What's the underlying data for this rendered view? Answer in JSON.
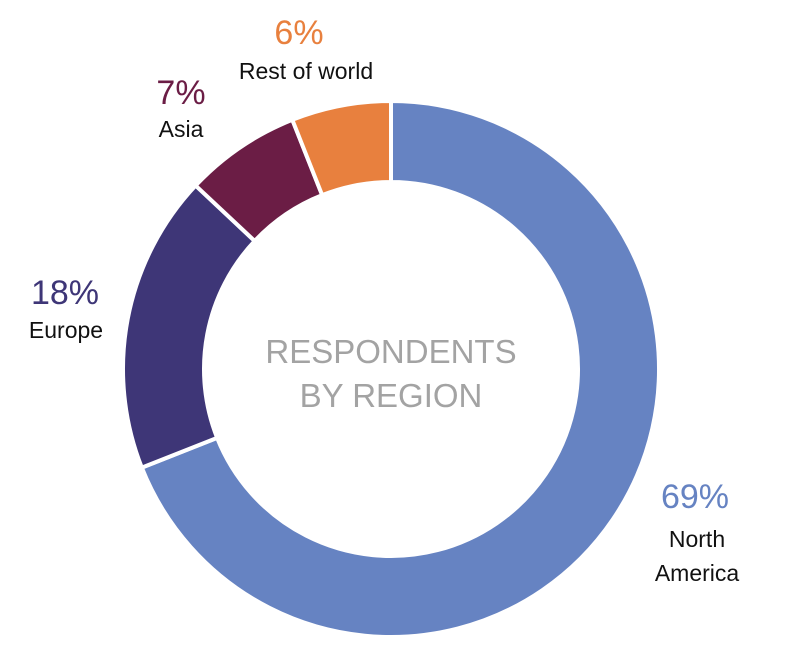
{
  "chart_data": {
    "type": "donut",
    "title": [
      "RESPONDENTS",
      "BY REGION"
    ],
    "categories": [
      "North America",
      "Europe",
      "Asia",
      "Rest of world"
    ],
    "values": [
      69,
      18,
      7,
      6
    ],
    "value_labels": [
      "69%",
      "18%",
      "7%",
      "6%"
    ],
    "colors": [
      "#6683c2",
      "#3e3677",
      "#6b1d45",
      "#e8803e"
    ]
  }
}
